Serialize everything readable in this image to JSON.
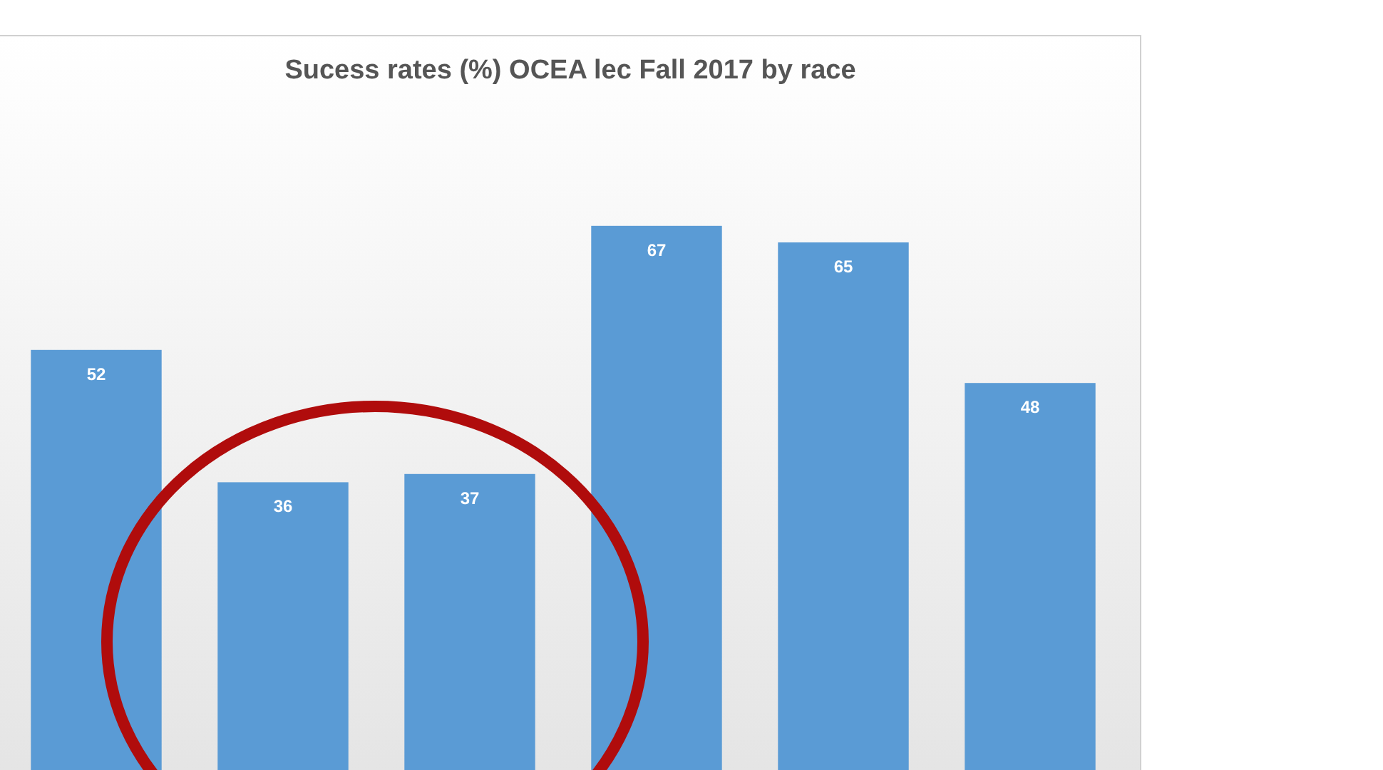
{
  "chart_data": {
    "type": "bar",
    "title": "Sucess rates (%) OCEA lec Fall 2017 by race",
    "categories": [
      null,
      null,
      null,
      null,
      null,
      null
    ],
    "values": [
      52,
      36,
      37,
      67,
      65,
      48
    ],
    "color": "#5a9bd5",
    "data_labels": true
  }
}
